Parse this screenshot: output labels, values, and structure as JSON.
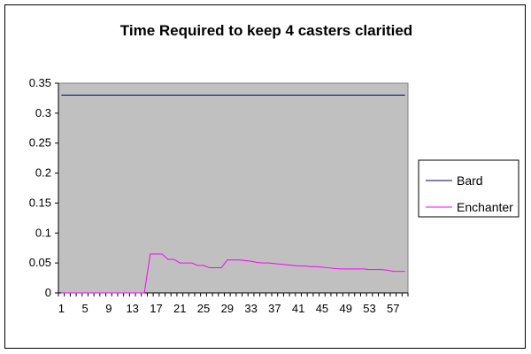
{
  "chart_data": {
    "type": "line",
    "title": "Time Required to keep 4 casters claritied",
    "xlabel": "",
    "ylabel": "",
    "ylim": [
      0,
      0.35
    ],
    "y_ticks": [
      "0",
      "0.05",
      "0.1",
      "0.15",
      "0.2",
      "0.25",
      "0.3",
      "0.35"
    ],
    "x": [
      1,
      2,
      3,
      4,
      5,
      6,
      7,
      8,
      9,
      10,
      11,
      12,
      13,
      14,
      15,
      16,
      17,
      18,
      19,
      20,
      21,
      22,
      23,
      24,
      25,
      26,
      27,
      28,
      29,
      30,
      31,
      32,
      33,
      34,
      35,
      36,
      37,
      38,
      39,
      40,
      41,
      42,
      43,
      44,
      45,
      46,
      47,
      48,
      49,
      50,
      51,
      52,
      53,
      54,
      55,
      56,
      57,
      58,
      59
    ],
    "x_tick_labels": [
      "1",
      "5",
      "9",
      "13",
      "17",
      "21",
      "25",
      "29",
      "33",
      "37",
      "41",
      "45",
      "49",
      "53",
      "57"
    ],
    "grid": false,
    "legend_position": "right",
    "plot_background": "#c0c0c0",
    "series": [
      {
        "name": "Bard",
        "color": "#000080",
        "values": [
          0.33,
          0.33,
          0.33,
          0.33,
          0.33,
          0.33,
          0.33,
          0.33,
          0.33,
          0.33,
          0.33,
          0.33,
          0.33,
          0.33,
          0.33,
          0.33,
          0.33,
          0.33,
          0.33,
          0.33,
          0.33,
          0.33,
          0.33,
          0.33,
          0.33,
          0.33,
          0.33,
          0.33,
          0.33,
          0.33,
          0.33,
          0.33,
          0.33,
          0.33,
          0.33,
          0.33,
          0.33,
          0.33,
          0.33,
          0.33,
          0.33,
          0.33,
          0.33,
          0.33,
          0.33,
          0.33,
          0.33,
          0.33,
          0.33,
          0.33,
          0.33,
          0.33,
          0.33,
          0.33,
          0.33,
          0.33,
          0.33,
          0.33,
          0.33
        ]
      },
      {
        "name": "Enchanter",
        "color": "#ff00ff",
        "values": [
          0,
          0,
          0,
          0,
          0,
          0,
          0,
          0,
          0,
          0,
          0,
          0,
          0,
          0,
          0,
          0.065,
          0.065,
          0.065,
          0.056,
          0.056,
          0.05,
          0.05,
          0.05,
          0.046,
          0.046,
          0.042,
          0.042,
          0.042,
          0.055,
          0.055,
          0.055,
          0.054,
          0.053,
          0.051,
          0.05,
          0.05,
          0.049,
          0.048,
          0.047,
          0.046,
          0.045,
          0.045,
          0.044,
          0.044,
          0.043,
          0.042,
          0.041,
          0.04,
          0.04,
          0.04,
          0.04,
          0.04,
          0.039,
          0.039,
          0.039,
          0.038,
          0.036,
          0.036,
          0.036
        ]
      }
    ]
  }
}
